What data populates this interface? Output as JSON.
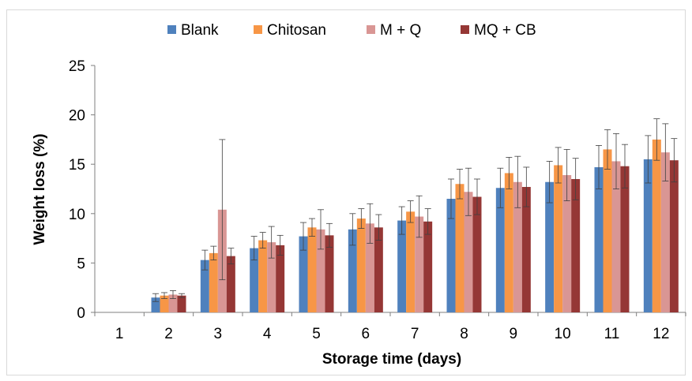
{
  "chart_data": {
    "type": "bar",
    "title": "",
    "xlabel": "Storage time (days)",
    "ylabel": "Weight loss (%)",
    "ylim": [
      0,
      25
    ],
    "yticks": [
      0,
      5,
      10,
      15,
      20,
      25
    ],
    "categories": [
      "1",
      "2",
      "3",
      "4",
      "5",
      "6",
      "7",
      "8",
      "9",
      "10",
      "11",
      "12"
    ],
    "legend_position": "top",
    "grid": false,
    "series": [
      {
        "name": "Blank",
        "color": "#4f81bd",
        "values": [
          0,
          1.5,
          5.3,
          6.5,
          7.7,
          8.4,
          9.3,
          11.5,
          12.6,
          13.2,
          14.7,
          15.5
        ],
        "errors": [
          0,
          0.4,
          1.0,
          1.2,
          1.4,
          1.6,
          1.4,
          2.0,
          2.0,
          2.1,
          2.2,
          2.4
        ]
      },
      {
        "name": "Chitosan",
        "color": "#f79646",
        "values": [
          0,
          1.7,
          6.0,
          7.3,
          8.6,
          9.5,
          10.2,
          13.0,
          14.1,
          14.9,
          16.5,
          17.5
        ],
        "errors": [
          0,
          0.3,
          0.7,
          0.8,
          0.9,
          1.0,
          1.1,
          1.5,
          1.6,
          1.8,
          2.0,
          2.1
        ]
      },
      {
        "name": "M + Q",
        "color": "#d99694",
        "values": [
          0,
          1.8,
          10.4,
          7.1,
          8.4,
          9.0,
          9.7,
          12.2,
          13.2,
          13.9,
          15.3,
          16.2
        ],
        "errors": [
          0,
          0.4,
          7.1,
          1.6,
          2.0,
          2.0,
          2.1,
          2.4,
          2.6,
          2.6,
          2.8,
          2.9
        ]
      },
      {
        "name": "MQ + CB",
        "color": "#953735",
        "values": [
          0,
          1.7,
          5.7,
          6.8,
          7.8,
          8.6,
          9.2,
          11.7,
          12.7,
          13.5,
          14.8,
          15.4
        ],
        "errors": [
          0,
          0.2,
          0.8,
          1.0,
          1.2,
          1.3,
          1.3,
          1.8,
          2.0,
          2.1,
          2.2,
          2.2
        ]
      }
    ]
  }
}
